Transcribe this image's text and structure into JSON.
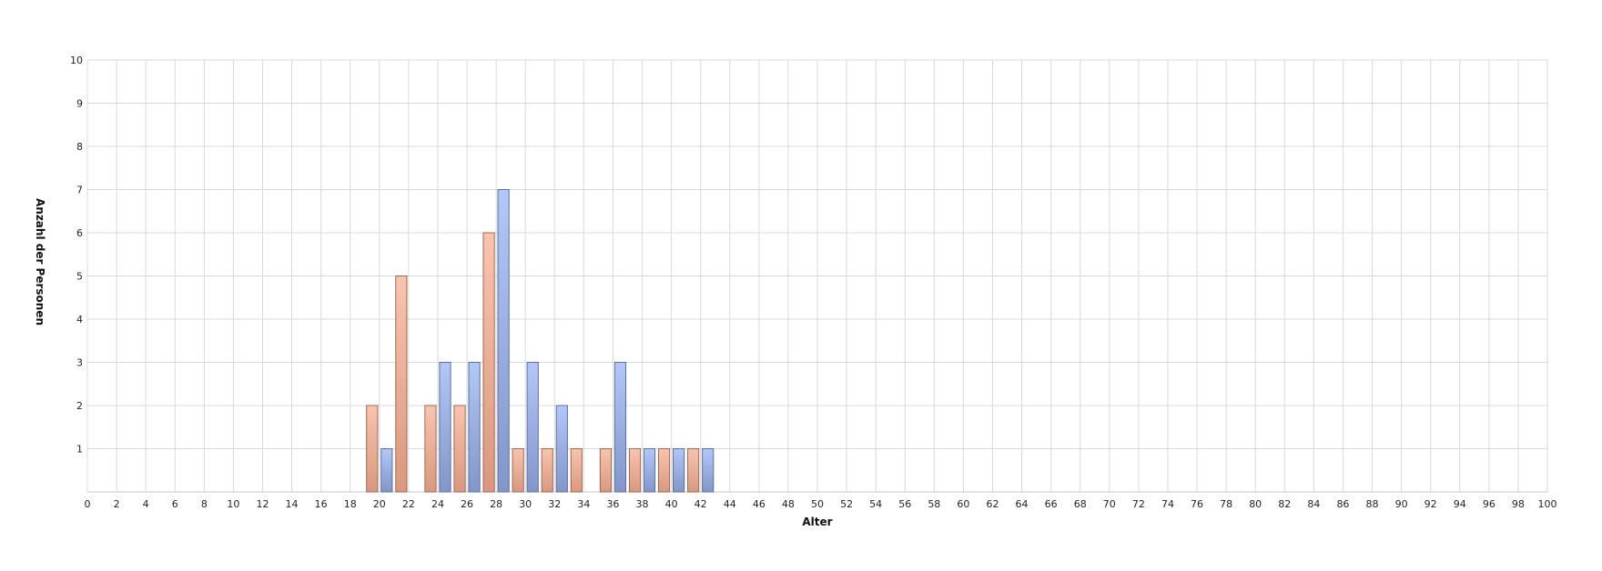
{
  "chart_data": {
    "type": "bar",
    "title": "",
    "xlabel": "Alter",
    "ylabel": "Anzahl der Personen",
    "xlim": [
      0,
      100
    ],
    "ylim": [
      0,
      10
    ],
    "x_ticks": [
      "0",
      "2",
      "4",
      "6",
      "8",
      "10",
      "12",
      "14",
      "16",
      "18",
      "20",
      "22",
      "24",
      "26",
      "28",
      "30",
      "32",
      "34",
      "36",
      "38",
      "40",
      "42",
      "44",
      "46",
      "48",
      "50",
      "52",
      "54",
      "56",
      "58",
      "60",
      "62",
      "64",
      "66",
      "68",
      "70",
      "72",
      "74",
      "76",
      "78",
      "80",
      "82",
      "84",
      "86",
      "88",
      "90",
      "92",
      "94",
      "96",
      "98",
      "100"
    ],
    "y_ticks": [
      "1",
      "2",
      "3",
      "4",
      "5",
      "6",
      "7",
      "8",
      "9",
      "10"
    ],
    "grid": true,
    "legend": "none",
    "colors": {
      "salmon": "#f4b49c",
      "blue": "#a4bcf0",
      "grid": "#d9d9d9"
    },
    "bars": [
      {
        "x": 20,
        "value": 2,
        "color": "salmon"
      },
      {
        "x": 21,
        "value": 1,
        "color": "blue"
      },
      {
        "x": 22,
        "value": 5,
        "color": "salmon"
      },
      {
        "x": 24,
        "value": 2,
        "color": "salmon"
      },
      {
        "x": 25,
        "value": 3,
        "color": "blue"
      },
      {
        "x": 26,
        "value": 2,
        "color": "salmon"
      },
      {
        "x": 27,
        "value": 3,
        "color": "blue"
      },
      {
        "x": 28,
        "value": 6,
        "color": "salmon"
      },
      {
        "x": 29,
        "value": 7,
        "color": "blue"
      },
      {
        "x": 30,
        "value": 1,
        "color": "salmon"
      },
      {
        "x": 31,
        "value": 3,
        "color": "blue"
      },
      {
        "x": 32,
        "value": 1,
        "color": "salmon"
      },
      {
        "x": 33,
        "value": 2,
        "color": "blue"
      },
      {
        "x": 34,
        "value": 1,
        "color": "salmon"
      },
      {
        "x": 36,
        "value": 1,
        "color": "salmon"
      },
      {
        "x": 37,
        "value": 3,
        "color": "blue"
      },
      {
        "x": 38,
        "value": 1,
        "color": "salmon"
      },
      {
        "x": 39,
        "value": 1,
        "color": "blue"
      },
      {
        "x": 40,
        "value": 1,
        "color": "salmon"
      },
      {
        "x": 41,
        "value": 1,
        "color": "blue"
      },
      {
        "x": 42,
        "value": 1,
        "color": "salmon"
      },
      {
        "x": 43,
        "value": 1,
        "color": "blue"
      }
    ]
  }
}
